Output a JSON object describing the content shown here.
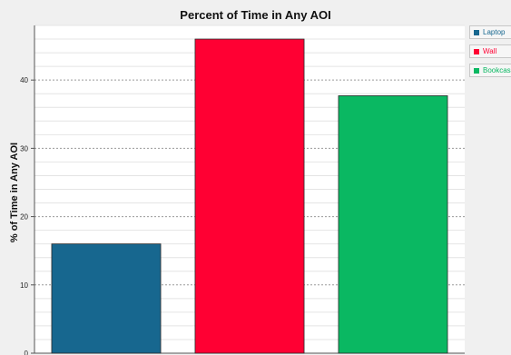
{
  "chart_data": {
    "type": "bar",
    "title": "Percent of Time in Any AOI",
    "xlabel": "",
    "ylabel": "% of Time in Any AOI",
    "categories": [
      "Laptop",
      "Wall",
      "Bookcase"
    ],
    "values": [
      16,
      46,
      37.7
    ],
    "colors": [
      "#17678f",
      "#ff0033",
      "#0ab862"
    ],
    "ylim": [
      0,
      48
    ],
    "yticks": [
      0,
      10,
      20,
      30,
      40
    ],
    "ytick_labels": [
      "0",
      "10",
      "20",
      "30",
      "40"
    ],
    "grid": true,
    "legend_position": "right",
    "legend": [
      {
        "label": "Laptop",
        "color": "#17678f"
      },
      {
        "label": "Wall",
        "color": "#ff0033"
      },
      {
        "label": "Bookcase",
        "color": "#0ab862"
      }
    ]
  }
}
